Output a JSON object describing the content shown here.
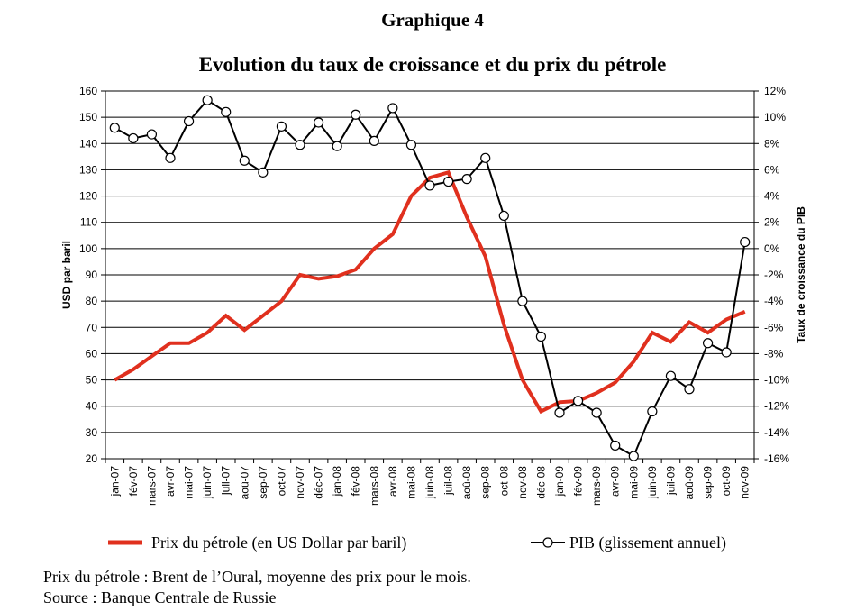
{
  "header": {
    "doc_label": "Graphique 4",
    "title": "Evolution du taux de croissance et du prix du pétrole"
  },
  "chart_data": {
    "type": "line",
    "categories": [
      "jan-07",
      "fév-07",
      "mars-07",
      "avr-07",
      "mai-07",
      "juin-07",
      "juil-07",
      "aoû-07",
      "sep-07",
      "oct-07",
      "nov-07",
      "déc-07",
      "jan-08",
      "fév-08",
      "mars-08",
      "avr-08",
      "mai-08",
      "juin-08",
      "juil-08",
      "aoû-08",
      "sep-08",
      "oct-08",
      "nov-08",
      "déc-08",
      "jan-09",
      "fév-09",
      "mars-09",
      "avr-09",
      "mai-09",
      "juin-09",
      "juil-09",
      "aoû-09",
      "sep-09",
      "oct-09",
      "nov-09"
    ],
    "left_axis": {
      "label": "USD par baril",
      "min": 20,
      "max": 160,
      "step": 10,
      "ticks": [
        "20",
        "30",
        "40",
        "50",
        "60",
        "70",
        "80",
        "90",
        "100",
        "110",
        "120",
        "130",
        "140",
        "150",
        "160"
      ]
    },
    "right_axis": {
      "label": "Taux de croissance du PIB",
      "min": -16,
      "max": 12,
      "step": 2,
      "ticks": [
        "-16%",
        "-14%",
        "-12%",
        "-10%",
        "-8%",
        "-6%",
        "-4%",
        "-2%",
        "0%",
        "2%",
        "4%",
        "6%",
        "8%",
        "10%",
        "12%"
      ]
    },
    "series": [
      {
        "name": "Prix du pétrole (en US Dollar par baril)",
        "axis": "left",
        "color": "#e0301e",
        "marker": "none",
        "values": [
          50,
          54,
          59,
          64,
          64,
          68,
          74.5,
          69,
          74.5,
          80,
          90,
          88.5,
          89.5,
          92,
          100,
          105.5,
          120,
          127,
          129,
          112,
          97,
          71,
          50,
          38,
          41.5,
          42,
          45,
          49,
          57,
          68,
          64.5,
          72,
          68,
          73,
          76
        ]
      },
      {
        "name": "PIB (glissement annuel)",
        "axis": "right",
        "color": "#000000",
        "marker": "circle",
        "values": [
          9.2,
          8.4,
          8.7,
          6.9,
          9.7,
          11.3,
          10.4,
          6.7,
          5.8,
          9.3,
          7.9,
          9.6,
          7.8,
          10.2,
          8.2,
          10.7,
          7.9,
          4.8,
          5.1,
          5.3,
          6.9,
          2.5,
          -4.0,
          -6.7,
          -12.5,
          -11.6,
          -12.5,
          -15.0,
          -15.8,
          -12.4,
          -9.7,
          -10.7,
          -7.2,
          -7.9,
          0.5
        ]
      }
    ],
    "legend_position": "bottom",
    "grid": true
  },
  "legend": {
    "oil_label": "Prix du pétrole (en US Dollar par baril)",
    "gdp_label": "PIB (glissement annuel)"
  },
  "notes": {
    "line1": "Prix du pétrole : Brent de l’Oural, moyenne des prix pour le mois.",
    "line2": "Source : Banque Centrale de Russie"
  }
}
